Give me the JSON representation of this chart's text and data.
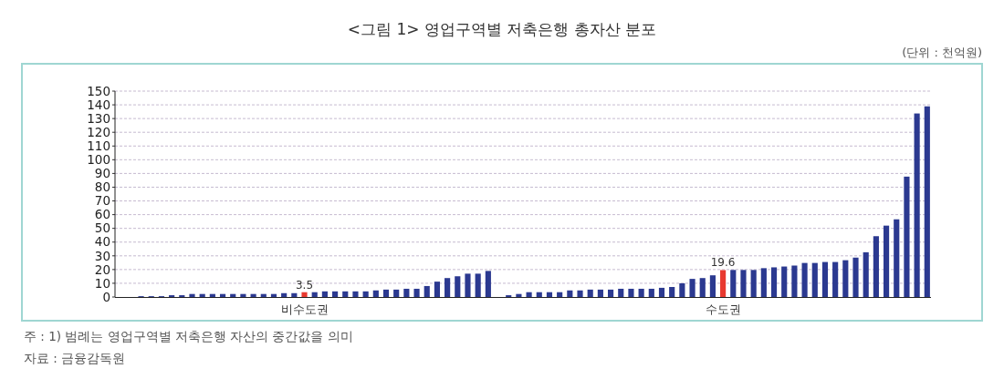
{
  "chart_data": {
    "type": "bar",
    "title": "<그림 1> 영업구역별 저축은행 총자산 분포",
    "annotations": [
      "(단위 : 천억원)",
      "주 : 1) 범례는 영업구역별 저축은행 자산의 중간값을 의미",
      "자료 : 금융감독원"
    ],
    "categories": [
      null,
      null,
      null,
      null,
      null,
      null,
      null,
      null,
      null,
      null,
      null,
      null,
      null,
      null,
      null,
      null,
      null,
      null,
      "비수도권",
      null,
      null,
      null,
      null,
      null,
      null,
      null,
      null,
      null,
      null,
      null,
      null,
      null,
      null,
      null,
      null,
      null,
      null,
      null,
      null,
      null,
      null,
      null,
      null,
      null,
      null,
      null,
      null,
      null,
      null,
      null,
      null,
      null,
      null,
      null,
      null,
      null,
      null,
      null,
      null,
      "수도권",
      null,
      null,
      null,
      null,
      null,
      null,
      null,
      null,
      null,
      null,
      null,
      null,
      null,
      null,
      null,
      null,
      null,
      null,
      null,
      null
    ],
    "values": [
      null,
      null,
      0.6,
      0.6,
      0.6,
      1.3,
      1.3,
      2.2,
      2.2,
      2.2,
      2.2,
      2.2,
      2.2,
      2.2,
      2.2,
      2.2,
      2.8,
      2.8,
      3.5,
      3.5,
      4.1,
      4.1,
      4.1,
      4.1,
      4.1,
      4.8,
      5.4,
      5.4,
      6.0,
      6.0,
      8,
      11.2,
      13.8,
      15.1,
      17,
      17,
      19,
      null,
      1.3,
      2.2,
      3.5,
      3.5,
      3.5,
      3.5,
      4.8,
      4.8,
      5.4,
      5.4,
      5.4,
      6,
      6,
      6,
      6,
      6.7,
      7.3,
      10,
      13.2,
      13.8,
      15.8,
      19.6,
      19.7,
      19.7,
      19.7,
      21,
      21.6,
      22.2,
      22.9,
      24.8,
      24.8,
      25.5,
      25.5,
      26.8,
      28.7,
      32.6,
      44.3,
      52,
      56.6,
      87.7,
      133.7,
      138.9
    ],
    "colors": [
      null,
      null,
      "#2b3990",
      "#2b3990",
      "#2b3990",
      "#2b3990",
      "#2b3990",
      "#2b3990",
      "#2b3990",
      "#2b3990",
      "#2b3990",
      "#2b3990",
      "#2b3990",
      "#2b3990",
      "#2b3990",
      "#2b3990",
      "#2b3990",
      "#2b3990",
      "#e8392f",
      "#2b3990",
      "#2b3990",
      "#2b3990",
      "#2b3990",
      "#2b3990",
      "#2b3990",
      "#2b3990",
      "#2b3990",
      "#2b3990",
      "#2b3990",
      "#2b3990",
      "#2b3990",
      "#2b3990",
      "#2b3990",
      "#2b3990",
      "#2b3990",
      "#2b3990",
      "#2b3990",
      null,
      "#2b3990",
      "#2b3990",
      "#2b3990",
      "#2b3990",
      "#2b3990",
      "#2b3990",
      "#2b3990",
      "#2b3990",
      "#2b3990",
      "#2b3990",
      "#2b3990",
      "#2b3990",
      "#2b3990",
      "#2b3990",
      "#2b3990",
      "#2b3990",
      "#2b3990",
      "#2b3990",
      "#2b3990",
      "#2b3990",
      "#2b3990",
      "#e8392f",
      "#2b3990",
      "#2b3990",
      "#2b3990",
      "#2b3990",
      "#2b3990",
      "#2b3990",
      "#2b3990",
      "#2b3990",
      "#2b3990",
      "#2b3990",
      "#2b3990",
      "#2b3990",
      "#2b3990",
      "#2b3990",
      "#2b3990",
      "#2b3990",
      "#2b3990",
      "#2b3990",
      "#2b3990",
      "#2b3990"
    ],
    "value_labels": [
      null,
      null,
      null,
      null,
      null,
      null,
      null,
      null,
      null,
      null,
      null,
      null,
      null,
      null,
      null,
      null,
      null,
      null,
      "3.5",
      null,
      null,
      null,
      null,
      null,
      null,
      null,
      null,
      null,
      null,
      null,
      null,
      null,
      null,
      null,
      null,
      null,
      null,
      null,
      null,
      null,
      null,
      null,
      null,
      null,
      null,
      null,
      null,
      null,
      null,
      null,
      null,
      null,
      null,
      null,
      null,
      null,
      null,
      null,
      null,
      "19.6",
      null,
      null,
      null,
      null,
      null,
      null,
      null,
      null,
      null,
      null,
      null,
      null,
      null,
      null,
      null,
      null,
      null,
      null,
      null,
      null
    ],
    "ylim": [
      0,
      150
    ],
    "yticks": [
      0,
      10,
      20,
      30,
      40,
      50,
      60,
      70,
      80,
      90,
      100,
      110,
      120,
      130,
      140,
      150
    ],
    "grid": "y"
  }
}
